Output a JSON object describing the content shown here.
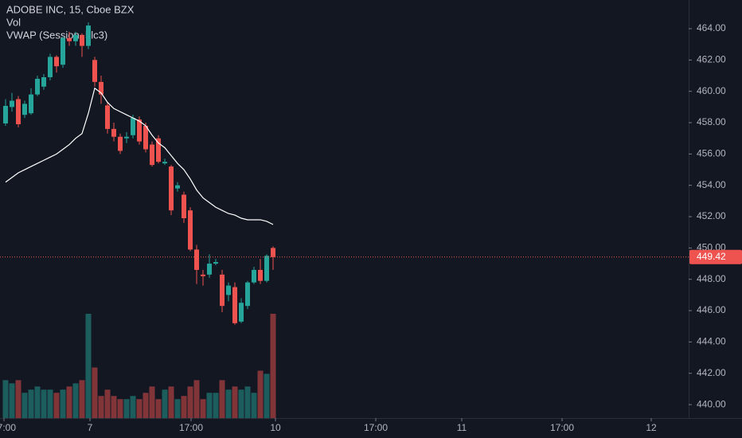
{
  "chart_data": {
    "type": "candlestick",
    "title": "ADOBE INC, 15, Cboe BZX",
    "x": [
      0,
      1,
      2,
      3,
      4,
      5,
      6,
      7,
      8,
      9,
      10,
      11,
      12,
      13,
      14,
      15,
      16,
      17,
      18,
      19,
      20,
      21,
      22,
      23,
      24,
      25,
      26,
      27,
      28,
      29,
      30,
      31,
      32,
      33,
      34,
      35,
      36,
      37,
      38,
      39,
      40,
      41,
      42
    ],
    "open": [
      457.95,
      459.0,
      459.5,
      458.5,
      458.6,
      459.8,
      460.3,
      460.9,
      462.2,
      461.7,
      463.4,
      463.2,
      463.6,
      462.9,
      462.0,
      460.6,
      459.1,
      457.6,
      457.1,
      457.0,
      457.2,
      458.2,
      457.8,
      456.6,
      457.0,
      455.4,
      455.2,
      453.8,
      453.4,
      452.4,
      449.9,
      448.3,
      448.3,
      449.0,
      448.3,
      447.0,
      447.5,
      445.3,
      446.3,
      447.8,
      448.6,
      447.9,
      450.0
    ],
    "high": [
      459.5,
      459.9,
      459.7,
      459.4,
      460.2,
      461.0,
      461.1,
      462.4,
      462.3,
      463.5,
      463.8,
      463.8,
      463.7,
      464.4,
      462.2,
      461.0,
      459.3,
      458.0,
      457.3,
      457.4,
      458.5,
      458.4,
      458.0,
      456.8,
      457.2,
      455.7,
      455.3,
      454.2,
      453.6,
      452.6,
      450.2,
      448.6,
      449.6,
      449.3,
      448.6,
      447.8,
      447.8,
      446.8,
      447.9,
      448.8,
      449.3,
      449.6,
      450.1
    ],
    "low": [
      457.8,
      458.7,
      457.7,
      458.3,
      458.5,
      459.7,
      460.1,
      460.7,
      461.2,
      461.5,
      462.9,
      462.9,
      462.2,
      462.7,
      460.3,
      459.2,
      457.3,
      456.8,
      456.0,
      456.7,
      457.0,
      456.6,
      456.1,
      455.2,
      455.4,
      455.3,
      452.1,
      453.6,
      451.6,
      449.8,
      447.7,
      447.6,
      448.1,
      448.9,
      445.9,
      446.6,
      445.1,
      445.2,
      446.1,
      447.7,
      447.7,
      447.8,
      448.6
    ],
    "close": [
      459.07,
      459.4,
      457.9,
      459.2,
      459.8,
      460.8,
      460.9,
      462.2,
      461.6,
      463.4,
      463.2,
      463.6,
      462.9,
      464.2,
      460.6,
      459.8,
      457.6,
      457.1,
      456.2,
      457.1,
      458.3,
      456.8,
      456.3,
      455.3,
      455.5,
      455.5,
      452.4,
      454.0,
      451.9,
      449.9,
      448.6,
      448.2,
      449.0,
      449.1,
      446.3,
      447.6,
      445.2,
      446.5,
      447.8,
      448.6,
      447.9,
      449.5,
      449.42
    ],
    "up_color": "#26a69a",
    "down_color": "#ef5350",
    "volume": {
      "name": "Vol",
      "values": [
        12,
        11,
        12,
        8,
        9,
        10,
        9,
        9,
        8,
        9,
        10,
        11,
        12,
        33,
        16,
        7,
        9,
        7,
        6,
        6,
        7,
        6,
        8,
        10,
        6,
        9,
        10,
        6,
        7,
        10,
        12,
        6,
        8,
        8,
        12,
        9,
        10,
        9,
        10,
        8,
        15,
        14,
        33
      ]
    },
    "vwap": {
      "name": "VWAP (Session, hlc3)",
      "color": "#ffffff",
      "values": [
        454.2,
        454.5,
        454.8,
        455.0,
        455.2,
        455.4,
        455.6,
        455.8,
        456.0,
        456.3,
        456.6,
        457.0,
        457.3,
        458.6,
        460.2,
        459.9,
        459.3,
        458.9,
        458.7,
        458.5,
        458.3,
        458.1,
        457.8,
        457.2,
        456.7,
        456.4,
        455.9,
        455.4,
        455.0,
        454.4,
        453.7,
        453.2,
        452.9,
        452.6,
        452.4,
        452.2,
        452.1,
        451.9,
        451.8,
        451.8,
        451.8,
        451.7,
        451.5
      ]
    },
    "last_price": 449.42,
    "xlim": [
      -0.875,
      107.25
    ],
    "xticks": [
      {
        "value": -0.25,
        "label": "17:00"
      },
      {
        "value": 13.25,
        "label": "7"
      },
      {
        "value": 29.125,
        "label": "17:00"
      },
      {
        "value": 42.375,
        "label": "10"
      },
      {
        "value": 58.125,
        "label": "17:00"
      },
      {
        "value": 71.625,
        "label": "11"
      },
      {
        "value": 87.375,
        "label": "17:00"
      },
      {
        "value": 101.375,
        "label": "12"
      }
    ],
    "ylim": [
      439.14,
      465.83
    ],
    "yticks": [
      {
        "value": 440,
        "label": "440.00"
      },
      {
        "value": 442,
        "label": "442.00"
      },
      {
        "value": 444,
        "label": "444.00"
      },
      {
        "value": 446,
        "label": "446.00"
      },
      {
        "value": 448,
        "label": "448.00"
      },
      {
        "value": 450,
        "label": "450.00"
      },
      {
        "value": 452,
        "label": "452.00"
      },
      {
        "value": 454,
        "label": "454.00"
      },
      {
        "value": 456,
        "label": "456.00"
      },
      {
        "value": 458,
        "label": "458.00"
      },
      {
        "value": 460,
        "label": "460.00"
      },
      {
        "value": 462,
        "label": "462.00"
      },
      {
        "value": 464,
        "label": "464.00"
      }
    ],
    "grid": false
  }
}
